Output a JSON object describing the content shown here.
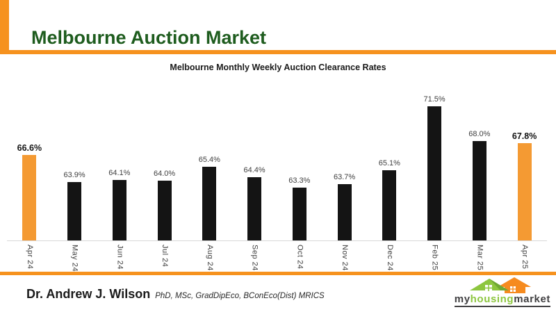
{
  "slide": {
    "title": "Melbourne Auction Market",
    "title_color": "#1e5c1e",
    "accent_color": "#f6921e"
  },
  "chart_data": {
    "type": "bar",
    "title": "Melbourne Monthly Weekly Auction Clearance Rates",
    "categories": [
      "Apr 24",
      "May 24",
      "Jun 24",
      "Jul 24",
      "Aug 24",
      "Sep 24",
      "Oct 24",
      "Nov 24",
      "Dec 24",
      "Feb 25",
      "Mar 25",
      "Apr 25"
    ],
    "values": [
      66.6,
      63.9,
      64.1,
      64.0,
      65.4,
      64.4,
      63.3,
      63.7,
      65.1,
      71.5,
      68.0,
      67.8
    ],
    "labels": [
      "66.6%",
      "63.9%",
      "64.1%",
      "64.0%",
      "65.4%",
      "64.4%",
      "63.3%",
      "63.7%",
      "65.1%",
      "71.5%",
      "68.0%",
      "67.8%"
    ],
    "highlight_indices": [
      0,
      11
    ],
    "bar_color": "#141414",
    "highlight_color": "#f49a33",
    "ylim": [
      58,
      72.5
    ],
    "xlabel": "",
    "ylabel": "",
    "grid": false,
    "legend": null
  },
  "footer": {
    "author": "Dr. Andrew J. Wilson",
    "credentials": "PhD, MSc, GradDipEco, BConEco(Dist) MRICS",
    "logo": {
      "part1": "my",
      "part2": "housing",
      "part3": "market",
      "icon": "houses-icon",
      "green": "#8dc63f",
      "orange": "#f68b1f",
      "dark": "#414042"
    }
  }
}
